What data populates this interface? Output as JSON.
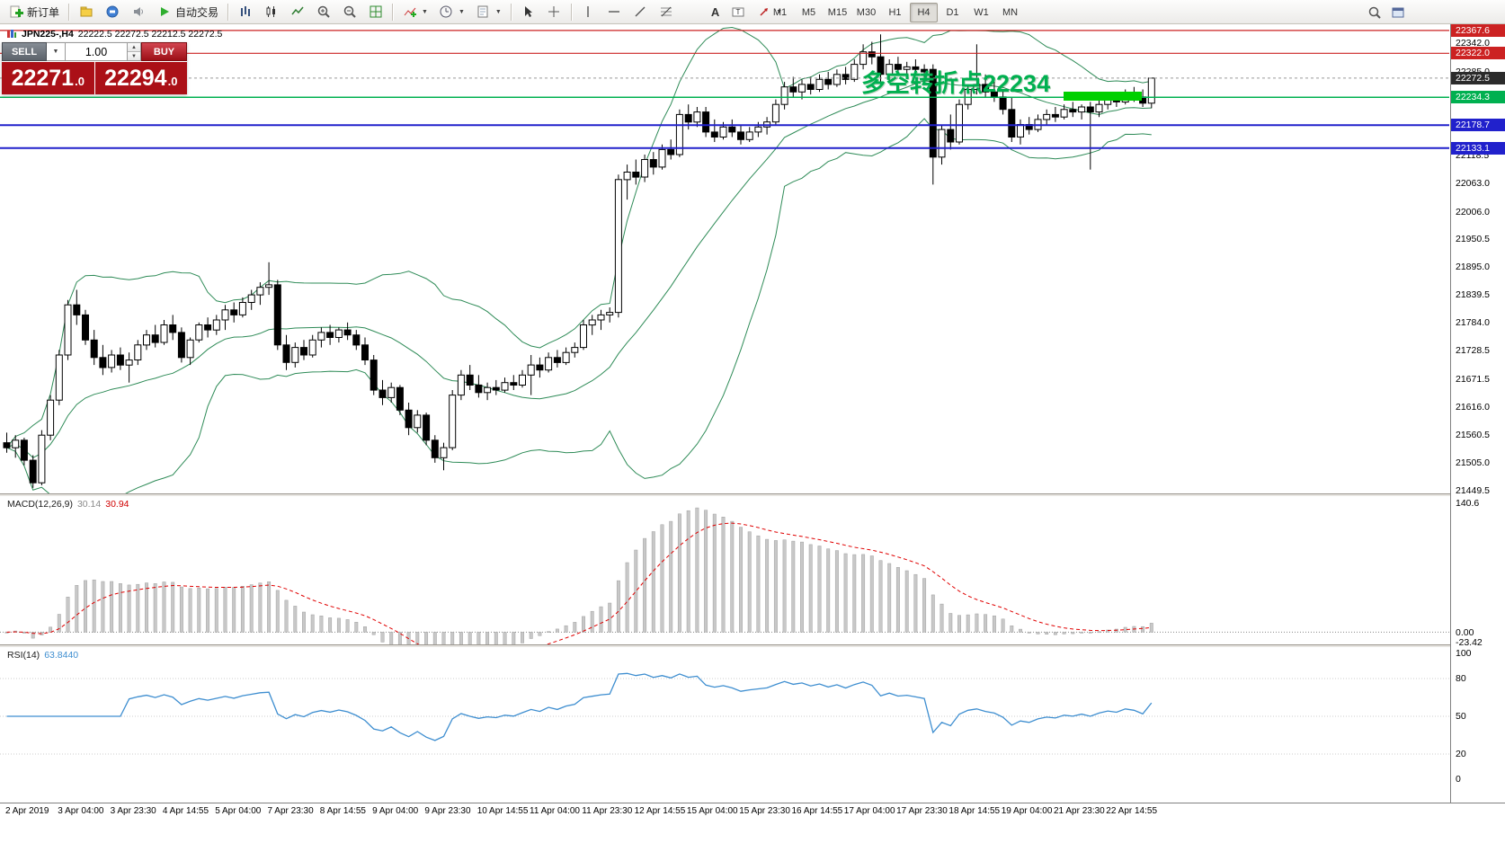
{
  "toolbar": {
    "new_order": "新订单",
    "autotrading": "自动交易",
    "text_tool": "A",
    "timeframes": [
      "M1",
      "M5",
      "M15",
      "M30",
      "H1",
      "H4",
      "D1",
      "W1",
      "MN"
    ],
    "active_timeframe": "H4"
  },
  "trade_panel": {
    "sell_label": "SELL",
    "buy_label": "BUY",
    "lot_value": "1.00",
    "sell_price_big": "22271",
    "sell_price_small": ".0",
    "buy_price_big": "22294",
    "buy_price_small": ".0"
  },
  "chart": {
    "symbol_label": "JPN225-,H4",
    "ohlc_values": "22222.5 22272.5 22212.5 22272.5",
    "annotation_text": "多空转折点22234",
    "current_price": 22272.5,
    "current_price_label": "22272.5",
    "levels": [
      {
        "price": 22367.6,
        "label": "22367.6",
        "color": "#cc2222",
        "width": 1.2
      },
      {
        "price": 22322.0,
        "label": "22322.0",
        "color": "#cc2222",
        "width": 1.2
      },
      {
        "price": 22234.3,
        "label": "22234.3",
        "color": "#00b050",
        "width": 1.5
      },
      {
        "price": 22178.7,
        "label": "22178.7",
        "color": "#2121cc",
        "width": 2
      },
      {
        "price": 22133.1,
        "label": "22133.1",
        "color": "#2121cc",
        "width": 2
      }
    ],
    "axis_labels": [
      "22342.0",
      "22285.0",
      "22229.9",
      "22118.5",
      "22063.0",
      "22006.0",
      "21950.5",
      "21895.0",
      "21839.5",
      "21784.0",
      "21728.5",
      "21671.5",
      "21616.0",
      "21560.5",
      "21505.0",
      "21449.5"
    ]
  },
  "macd_panel": {
    "name": "MACD(12,26,9)",
    "value_main": "30.14",
    "value_signal": "30.94",
    "axis": [
      "140.6",
      "0.00",
      "-23.42"
    ]
  },
  "rsi_panel": {
    "name": "RSI(14)",
    "value": "63.8440",
    "axis": [
      "100",
      "80",
      "50",
      "20",
      "0"
    ]
  },
  "time_axis": {
    "labels": [
      "2 Apr 2019",
      "3 Apr 04:00",
      "3 Apr 23:30",
      "4 Apr 14:55",
      "5 Apr 04:00",
      "7 Apr 23:30",
      "8 Apr 14:55",
      "9 Apr 04:00",
      "9 Apr 23:30",
      "10 Apr 14:55",
      "11 Apr 04:00",
      "11 Apr 23:30",
      "12 Apr 14:55",
      "15 Apr 04:00",
      "15 Apr 23:30",
      "16 Apr 14:55",
      "17 Apr 04:00",
      "17 Apr 23:30",
      "18 Apr 14:55",
      "19 Apr 04:00",
      "21 Apr 23:30",
      "22 Apr 14:55"
    ]
  },
  "colors": {
    "bull": "#ffffff",
    "bear": "#000000",
    "wick": "#000000",
    "bollinger": "#2e8b57",
    "macd_hist": "#c8c8c8",
    "macd_signal": "#e00000",
    "rsi": "#3e8ed0",
    "annotation": "#00b050",
    "highlight_bar": "#00d000",
    "current_badge": "#2b2b2b"
  },
  "chart_data": {
    "type": "candlestick",
    "symbol": "JPN225-",
    "timeframe": "H4",
    "ohlc_current": {
      "open": 22222.5,
      "high": 22272.5,
      "low": 22212.5,
      "close": 22272.5
    },
    "price_axis_range": [
      21442,
      22380
    ],
    "indicators": {
      "bollinger_bands": {
        "period": 20,
        "deviation": 2
      },
      "macd": {
        "fast": 12,
        "slow": 26,
        "signal": 9,
        "current_main": 30.14,
        "current_signal": 30.94,
        "axis_max": 140.6,
        "axis_min": -23.42
      },
      "rsi": {
        "period": 14,
        "current": 63.844
      }
    },
    "candles": [
      [
        21545,
        21565,
        21525,
        21535
      ],
      [
        21535,
        21560,
        21515,
        21550
      ],
      [
        21550,
        21555,
        21500,
        21510
      ],
      [
        21510,
        21520,
        21455,
        21465
      ],
      [
        21465,
        21570,
        21460,
        21560
      ],
      [
        21560,
        21640,
        21550,
        21630
      ],
      [
        21630,
        21730,
        21620,
        21720
      ],
      [
        21720,
        21830,
        21710,
        21820
      ],
      [
        21820,
        21850,
        21780,
        21800
      ],
      [
        21800,
        21810,
        21740,
        21750
      ],
      [
        21750,
        21770,
        21700,
        21715
      ],
      [
        21715,
        21740,
        21680,
        21695
      ],
      [
        21695,
        21730,
        21685,
        21720
      ],
      [
        21720,
        21735,
        21690,
        21700
      ],
      [
        21700,
        21725,
        21665,
        21710
      ],
      [
        21710,
        21750,
        21700,
        21740
      ],
      [
        21740,
        21770,
        21730,
        21760
      ],
      [
        21760,
        21780,
        21735,
        21745
      ],
      [
        21745,
        21790,
        21740,
        21780
      ],
      [
        21780,
        21800,
        21750,
        21765
      ],
      [
        21765,
        21775,
        21705,
        21715
      ],
      [
        21715,
        21755,
        21700,
        21750
      ],
      [
        21750,
        21785,
        21745,
        21780
      ],
      [
        21780,
        21795,
        21755,
        21770
      ],
      [
        21770,
        21800,
        21760,
        21790
      ],
      [
        21790,
        21820,
        21770,
        21810
      ],
      [
        21810,
        21825,
        21785,
        21800
      ],
      [
        21800,
        21835,
        21795,
        21825
      ],
      [
        21825,
        21850,
        21810,
        21840
      ],
      [
        21840,
        21865,
        21820,
        21855
      ],
      [
        21855,
        21905,
        21840,
        21860
      ],
      [
        21860,
        21870,
        21730,
        21740
      ],
      [
        21740,
        21760,
        21690,
        21705
      ],
      [
        21705,
        21745,
        21695,
        21735
      ],
      [
        21735,
        21750,
        21710,
        21720
      ],
      [
        21720,
        21760,
        21715,
        21750
      ],
      [
        21750,
        21775,
        21735,
        21765
      ],
      [
        21765,
        21780,
        21740,
        21755
      ],
      [
        21755,
        21775,
        21745,
        21770
      ],
      [
        21770,
        21785,
        21750,
        21760
      ],
      [
        21760,
        21770,
        21730,
        21740
      ],
      [
        21740,
        21755,
        21700,
        21710
      ],
      [
        21710,
        21720,
        21640,
        21650
      ],
      [
        21650,
        21670,
        21620,
        21635
      ],
      [
        21635,
        21665,
        21625,
        21655
      ],
      [
        21655,
        21660,
        21600,
        21610
      ],
      [
        21610,
        21625,
        21560,
        21575
      ],
      [
        21575,
        21610,
        21565,
        21600
      ],
      [
        21600,
        21605,
        21540,
        21550
      ],
      [
        21550,
        21560,
        21505,
        21515
      ],
      [
        21515,
        21545,
        21490,
        21535
      ],
      [
        21535,
        21650,
        21530,
        21640
      ],
      [
        21640,
        21690,
        21630,
        21680
      ],
      [
        21680,
        21700,
        21650,
        21660
      ],
      [
        21660,
        21680,
        21635,
        21645
      ],
      [
        21645,
        21665,
        21630,
        21655
      ],
      [
        21655,
        21670,
        21640,
        21650
      ],
      [
        21650,
        21675,
        21645,
        21665
      ],
      [
        21665,
        21680,
        21650,
        21660
      ],
      [
        21660,
        21690,
        21655,
        21680
      ],
      [
        21680,
        21720,
        21640,
        21700
      ],
      [
        21700,
        21715,
        21675,
        21690
      ],
      [
        21690,
        21725,
        21685,
        21715
      ],
      [
        21715,
        21730,
        21695,
        21705
      ],
      [
        21705,
        21735,
        21700,
        21725
      ],
      [
        21725,
        21745,
        21715,
        21735
      ],
      [
        21735,
        21790,
        21730,
        21780
      ],
      [
        21780,
        21800,
        21760,
        21790
      ],
      [
        21790,
        21810,
        21770,
        21800
      ],
      [
        21800,
        21815,
        21785,
        21805
      ],
      [
        21805,
        22080,
        21795,
        22070
      ],
      [
        22070,
        22100,
        22030,
        22085
      ],
      [
        22085,
        22110,
        22060,
        22075
      ],
      [
        22075,
        22120,
        22065,
        22110
      ],
      [
        22110,
        22125,
        22080,
        22095
      ],
      [
        22095,
        22140,
        22090,
        22130
      ],
      [
        22130,
        22150,
        22110,
        22120
      ],
      [
        22120,
        22210,
        22115,
        22200
      ],
      [
        22200,
        22220,
        22170,
        22185
      ],
      [
        22185,
        22215,
        22175,
        22205
      ],
      [
        22205,
        22215,
        22155,
        22165
      ],
      [
        22165,
        22190,
        22145,
        22155
      ],
      [
        22155,
        22185,
        22150,
        22175
      ],
      [
        22175,
        22190,
        22155,
        22165
      ],
      [
        22165,
        22180,
        22140,
        22150
      ],
      [
        22150,
        22175,
        22145,
        22165
      ],
      [
        22165,
        22185,
        22155,
        22175
      ],
      [
        22175,
        22195,
        22160,
        22185
      ],
      [
        22185,
        22230,
        22180,
        22220
      ],
      [
        22220,
        22265,
        22210,
        22255
      ],
      [
        22255,
        22275,
        22235,
        22245
      ],
      [
        22245,
        22270,
        22230,
        22260
      ],
      [
        22260,
        22275,
        22240,
        22250
      ],
      [
        22250,
        22280,
        22245,
        22270
      ],
      [
        22270,
        22285,
        22250,
        22260
      ],
      [
        22260,
        22290,
        22255,
        22280
      ],
      [
        22280,
        22295,
        22260,
        22270
      ],
      [
        22270,
        22310,
        22265,
        22300
      ],
      [
        22300,
        22340,
        22290,
        22325
      ],
      [
        22325,
        22345,
        22300,
        22315
      ],
      [
        22315,
        22360,
        22260,
        22280
      ],
      [
        22280,
        22310,
        22265,
        22300
      ],
      [
        22300,
        22315,
        22280,
        22290
      ],
      [
        22290,
        22305,
        22275,
        22295
      ],
      [
        22295,
        22310,
        22280,
        22290
      ],
      [
        22290,
        22300,
        22270,
        22285
      ],
      [
        22290,
        22300,
        22060,
        22115
      ],
      [
        22115,
        22180,
        22100,
        22170
      ],
      [
        22170,
        22200,
        22130,
        22145
      ],
      [
        22145,
        22230,
        22140,
        22220
      ],
      [
        22220,
        22260,
        22210,
        22250
      ],
      [
        22250,
        22340,
        22240,
        22260
      ],
      [
        22260,
        22280,
        22235,
        22245
      ],
      [
        22245,
        22265,
        22225,
        22235
      ],
      [
        22235,
        22250,
        22200,
        22210
      ],
      [
        22210,
        22235,
        22145,
        22155
      ],
      [
        22155,
        22190,
        22140,
        22180
      ],
      [
        22180,
        22195,
        22160,
        22170
      ],
      [
        22170,
        22200,
        22165,
        22190
      ],
      [
        22190,
        22210,
        22180,
        22200
      ],
      [
        22200,
        22215,
        22185,
        22195
      ],
      [
        22195,
        22220,
        22190,
        22210
      ],
      [
        22210,
        22225,
        22195,
        22205
      ],
      [
        22205,
        22220,
        22190,
        22215
      ],
      [
        22215,
        22225,
        22090,
        22205
      ],
      [
        22205,
        22230,
        22195,
        22220
      ],
      [
        22220,
        22240,
        22210,
        22230
      ],
      [
        22230,
        22245,
        22215,
        22225
      ],
      [
        22225,
        22250,
        22220,
        22240
      ],
      [
        22240,
        22255,
        22225,
        22235
      ],
      [
        22235,
        22250,
        22215,
        22222.5
      ],
      [
        22222.5,
        22272.5,
        22212.5,
        22272.5
      ]
    ]
  }
}
